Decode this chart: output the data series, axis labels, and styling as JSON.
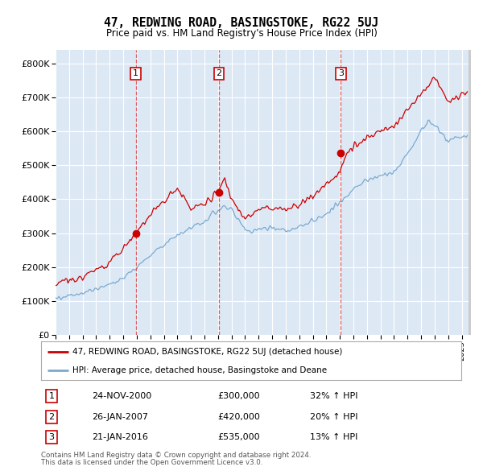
{
  "title": "47, REDWING ROAD, BASINGSTOKE, RG22 5UJ",
  "subtitle": "Price paid vs. HM Land Registry's House Price Index (HPI)",
  "red_label": "47, REDWING ROAD, BASINGSTOKE, RG22 5UJ (detached house)",
  "blue_label": "HPI: Average price, detached house, Basingstoke and Deane",
  "footnote1": "Contains HM Land Registry data © Crown copyright and database right 2024.",
  "footnote2": "This data is licensed under the Open Government Licence v3.0.",
  "transactions": [
    {
      "num": 1,
      "date": "24-NOV-2000",
      "price": 300000,
      "hpi_pct": "32% ↑ HPI",
      "x_year": 2000.92
    },
    {
      "num": 2,
      "date": "26-JAN-2007",
      "price": 420000,
      "hpi_pct": "20% ↑ HPI",
      "x_year": 2007.07
    },
    {
      "num": 3,
      "date": "21-JAN-2016",
      "price": 535000,
      "hpi_pct": "13% ↑ HPI",
      "x_year": 2016.07
    }
  ],
  "ylim": [
    0,
    840000
  ],
  "xlim_start": 1995.0,
  "xlim_end": 2025.5,
  "plot_bg_color": "#dde8f5",
  "grid_color": "#ffffff",
  "red_color": "#cc0000",
  "blue_color": "#7aaad0",
  "vline_color": "#dd4444",
  "marker_label_border": "#cc0000",
  "table_data": [
    [
      "1",
      "24-NOV-2000",
      "£300,000",
      "32% ↑ HPI"
    ],
    [
      "2",
      "26-JAN-2007",
      "£420,000",
      "20% ↑ HPI"
    ],
    [
      "3",
      "21-JAN-2016",
      "£535,000",
      "13% ↑ HPI"
    ]
  ]
}
